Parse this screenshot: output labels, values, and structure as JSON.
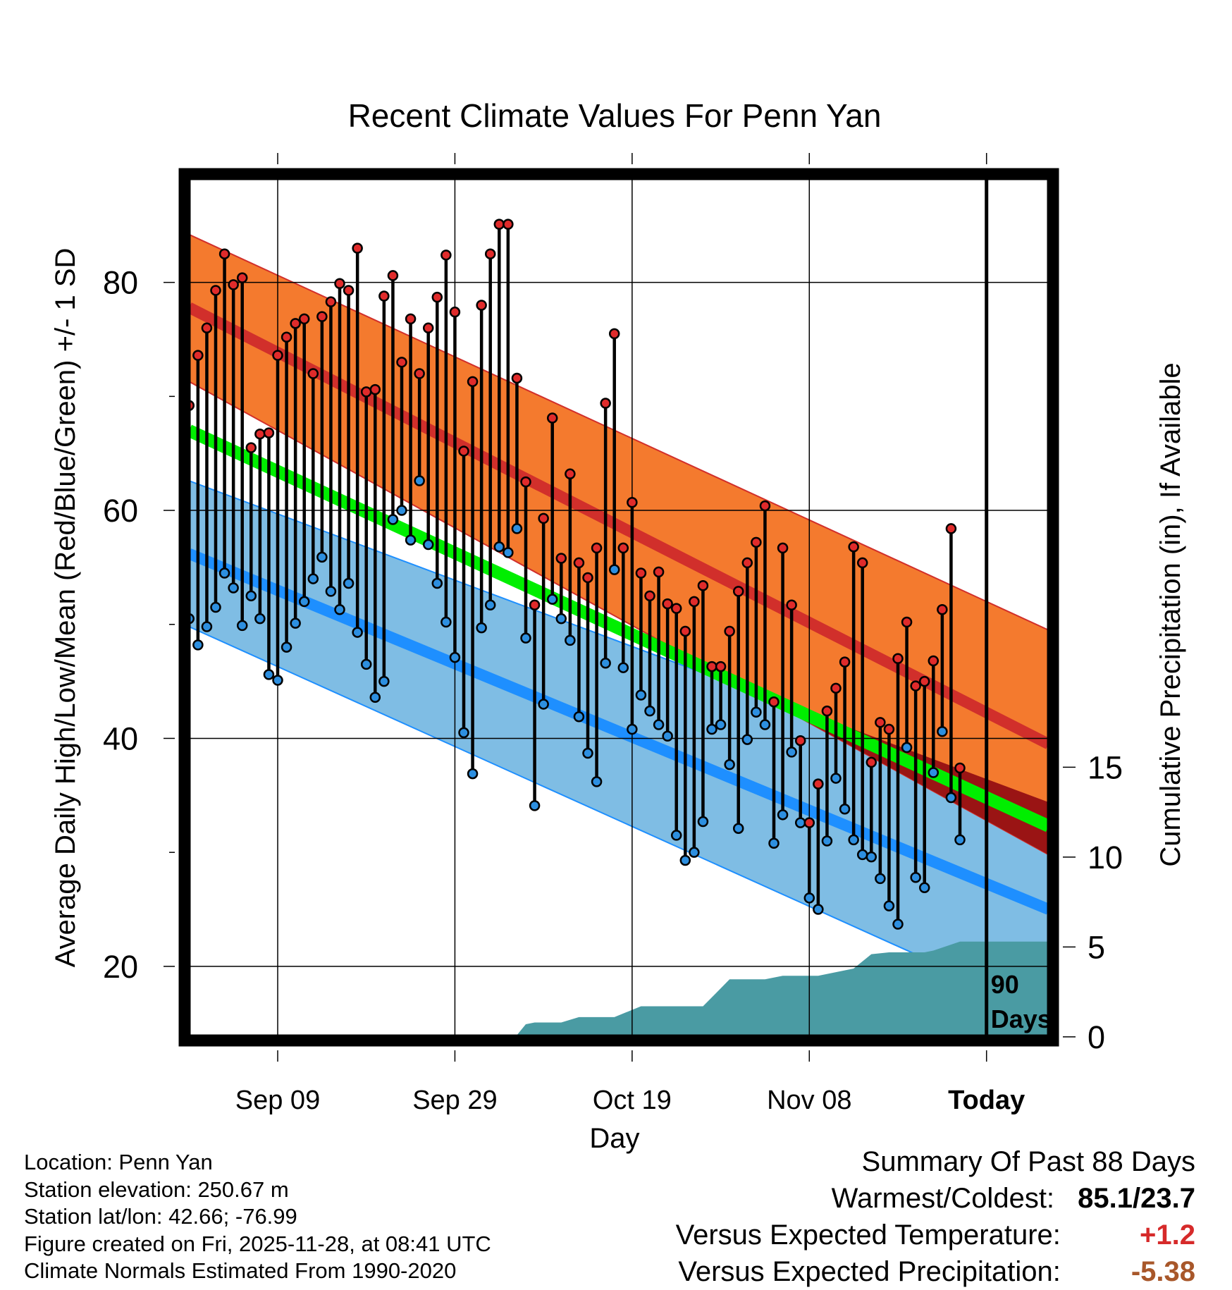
{
  "chart_data": {
    "type": "line",
    "title": "Recent Climate Values For Penn Yan",
    "xlabel": "Day",
    "ylabel": "Average Daily High/Low/Mean (Red/Blue/Green) +/- 1 SD",
    "y2label": "Cumulative Precipitation (in), If Available",
    "ylim": [
      13.5,
      89.5
    ],
    "y2lim": [
      -0.2,
      48
    ],
    "xlim": [
      -0.5,
      97.5
    ],
    "yticks": [
      20,
      40,
      60,
      80
    ],
    "y2ticks": [
      0,
      5,
      10,
      15
    ],
    "xticks": [
      {
        "day": 10,
        "label": "Sep 09"
      },
      {
        "day": 30,
        "label": "Sep 29"
      },
      {
        "day": 50,
        "label": "Oct 19"
      },
      {
        "day": 70,
        "label": "Nov 08"
      },
      {
        "day": 90,
        "label": "Today"
      }
    ],
    "today_marker": {
      "day": 90,
      "label_line1": "90",
      "label_line2": "Days"
    },
    "normals": {
      "days": [
        0,
        97
      ],
      "high_mean": [
        77.8,
        39.5
      ],
      "high_upper": [
        84.2,
        49.5
      ],
      "high_lower": [
        71.3,
        29.8
      ],
      "low_mean": [
        56.2,
        25
      ],
      "low_upper": [
        62.6,
        34.4
      ],
      "low_lower": [
        49.8,
        15.8
      ],
      "mean_mean": [
        67,
        32.3
      ]
    },
    "daily": {
      "high": [
        69.2,
        73.6,
        76,
        79.3,
        82.5,
        79.8,
        80.4,
        65.5,
        66.7,
        66.8,
        73.6,
        75.2,
        76.4,
        76.8,
        72,
        77,
        78.3,
        79.9,
        79.3,
        83,
        70.4,
        70.6,
        78.8,
        80.6,
        73,
        76.8,
        72,
        76,
        78.7,
        82.4,
        77.4,
        65.2,
        71.3,
        78,
        82.5,
        85.1,
        85.1,
        71.6,
        62.5,
        51.7,
        59.3,
        68.1,
        55.8,
        63.2,
        55.4,
        54.1,
        56.7,
        69.4,
        75.5,
        56.7,
        60.7,
        54.5,
        52.5,
        54.6,
        51.8,
        51.4,
        49.4,
        52,
        53.4,
        46.3,
        46.3,
        49.4,
        52.9,
        55.4,
        57.2,
        60.4,
        43.2,
        56.7,
        51.7,
        39.8,
        32.6,
        36,
        42.4,
        44.4,
        46.7,
        56.8,
        55.4,
        37.9,
        41.4,
        40.8,
        47,
        50.2,
        44.6,
        45,
        46.8,
        51.3,
        58.4,
        37.4
      ],
      "low": [
        50.5,
        48.2,
        49.8,
        51.5,
        54.5,
        53.2,
        49.9,
        52.5,
        50.5,
        45.6,
        45.1,
        48,
        50.1,
        52,
        54,
        55.9,
        52.9,
        51.3,
        53.6,
        49.3,
        46.5,
        43.6,
        45,
        59.2,
        60,
        57.4,
        62.6,
        57,
        53.6,
        50.2,
        47.1,
        40.5,
        36.9,
        49.7,
        51.7,
        56.8,
        56.3,
        58.4,
        48.8,
        34.1,
        43,
        52.2,
        50.5,
        48.6,
        41.9,
        38.7,
        36.2,
        46.6,
        54.8,
        46.2,
        40.8,
        43.8,
        42.4,
        41.2,
        40.2,
        31.5,
        29.3,
        30,
        32.7,
        40.8,
        41.2,
        37.7,
        32.1,
        39.9,
        42.3,
        41.2,
        30.8,
        33.3,
        38.8,
        32.6,
        26,
        25,
        31,
        36.5,
        33.8,
        31.1,
        29.8,
        29.6,
        27.7,
        25.3,
        23.7,
        39.2,
        27.8,
        26.9,
        37,
        40.6,
        34.8,
        31.1
      ]
    },
    "precip": {
      "days": [
        0,
        25,
        26,
        37,
        38,
        39,
        42,
        44,
        48,
        51,
        58,
        61,
        65,
        67,
        71,
        75,
        77,
        79,
        83,
        84,
        87,
        97
      ],
      "cum": [
        0,
        0,
        0.1,
        0.1,
        0.7,
        0.8,
        0.8,
        1.1,
        1.1,
        1.7,
        1.7,
        3.2,
        3.2,
        3.4,
        3.4,
        3.8,
        4.6,
        4.7,
        4.7,
        4.8,
        5.3,
        5.3
      ]
    },
    "colors": {
      "high_band": "#f47a2e",
      "high_mean": "#d12f2b",
      "low_band": "#7fbde4",
      "low_mean": "#1e8fff",
      "mean": "#00ee00",
      "overlap": "#9a1414",
      "precip": "#4a9ba3",
      "high_dot": "#e02b2b",
      "low_dot": "#2d8fe0"
    }
  },
  "metadata_lines": [
    "Location: Penn Yan",
    "Station elevation: 250.67 m",
    "Station lat/lon: 42.66; -76.99",
    "Figure created on Fri, 2025-11-28, at 08:41 UTC",
    "Climate Normals Estimated From 1990-2020"
  ],
  "summary": {
    "title": "Summary Of Past 88 Days",
    "warm_cold_label": "Warmest/Coldest:",
    "warm_cold_value": "85.1/23.7",
    "temp_label": "Versus Expected Temperature:",
    "temp_value": "+1.2",
    "precip_label": "Versus Expected Precipitation:",
    "precip_value": "-5.38"
  }
}
